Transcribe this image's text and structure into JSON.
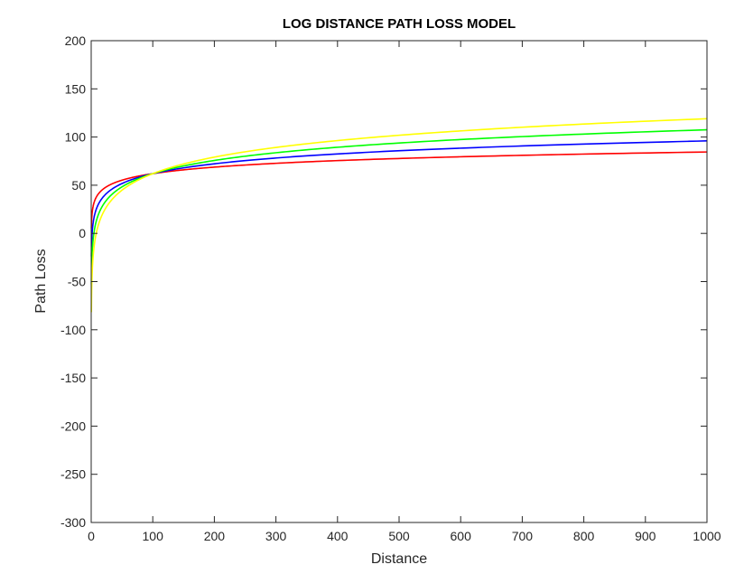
{
  "chart_data": {
    "type": "line",
    "title": "LOG DISTANCE PATH LOSS MODEL",
    "xlabel": "Distance",
    "ylabel": "Path Loss",
    "xlim": [
      0,
      1000
    ],
    "ylim": [
      -300,
      200
    ],
    "x_ticks": [
      "0",
      "100",
      "200",
      "300",
      "400",
      "500",
      "600",
      "700",
      "800",
      "900",
      "1000"
    ],
    "y_ticks": [
      "200",
      "150",
      "100",
      "50",
      "0",
      "-50",
      "-100",
      "-150",
      "-200",
      "-250",
      "-300"
    ],
    "grid": false,
    "legend": "none",
    "series": [
      {
        "color": "#ff0000",
        "ref_x": 100,
        "ref_y": 62,
        "slope_per_decade": 22.5
      },
      {
        "color": "#0000ff",
        "ref_x": 100,
        "ref_y": 62,
        "slope_per_decade": 34.0
      },
      {
        "color": "#00ff00",
        "ref_x": 100,
        "ref_y": 62,
        "slope_per_decade": 45.5
      },
      {
        "color": "#ffff00",
        "ref_x": 100,
        "ref_y": 62,
        "slope_per_decade": 57.0
      }
    ]
  }
}
